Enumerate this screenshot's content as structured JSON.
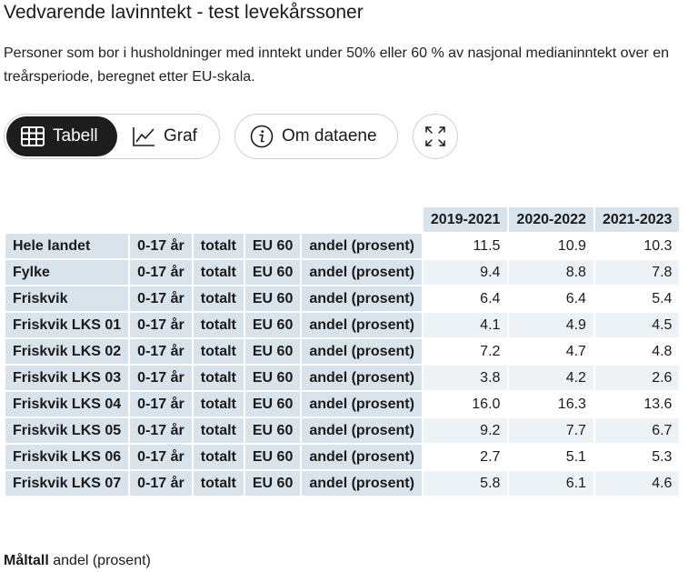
{
  "title": "Vedvarende lavinntekt - test levekårssoner",
  "description": "Personer som bor i husholdninger med inntekt under 50% eller 60 % av nasjonal medianinntekt over en treårsperiode, beregnet etter EU-skala.",
  "toolbar": {
    "table_label": "Tabell",
    "graph_label": "Graf",
    "about_label": "Om dataene"
  },
  "table": {
    "years": [
      "2019-2021",
      "2020-2022",
      "2021-2023"
    ],
    "rows": [
      {
        "area": "Hele landet",
        "age": "0-17 år",
        "group": "totalt",
        "scale": "EU 60",
        "measure": "andel (prosent)",
        "values": [
          "11.5",
          "10.9",
          "10.3"
        ]
      },
      {
        "area": "Fylke",
        "age": "0-17 år",
        "group": "totalt",
        "scale": "EU 60",
        "measure": "andel (prosent)",
        "values": [
          "9.4",
          "8.8",
          "7.8"
        ]
      },
      {
        "area": "Friskvik",
        "age": "0-17 år",
        "group": "totalt",
        "scale": "EU 60",
        "measure": "andel (prosent)",
        "values": [
          "6.4",
          "6.4",
          "5.4"
        ]
      },
      {
        "area": "Friskvik LKS 01",
        "age": "0-17 år",
        "group": "totalt",
        "scale": "EU 60",
        "measure": "andel (prosent)",
        "values": [
          "4.1",
          "4.9",
          "4.5"
        ]
      },
      {
        "area": "Friskvik LKS 02",
        "age": "0-17 år",
        "group": "totalt",
        "scale": "EU 60",
        "measure": "andel (prosent)",
        "values": [
          "7.2",
          "4.7",
          "4.8"
        ]
      },
      {
        "area": "Friskvik LKS 03",
        "age": "0-17 år",
        "group": "totalt",
        "scale": "EU 60",
        "measure": "andel (prosent)",
        "values": [
          "3.8",
          "4.2",
          "2.6"
        ]
      },
      {
        "area": "Friskvik LKS 04",
        "age": "0-17 år",
        "group": "totalt",
        "scale": "EU 60",
        "measure": "andel (prosent)",
        "values": [
          "16.0",
          "16.3",
          "13.6"
        ]
      },
      {
        "area": "Friskvik LKS 05",
        "age": "0-17 år",
        "group": "totalt",
        "scale": "EU 60",
        "measure": "andel (prosent)",
        "values": [
          "9.2",
          "7.7",
          "6.7"
        ]
      },
      {
        "area": "Friskvik LKS 06",
        "age": "0-17 år",
        "group": "totalt",
        "scale": "EU 60",
        "measure": "andel (prosent)",
        "values": [
          "2.7",
          "5.1",
          "5.3"
        ]
      },
      {
        "area": "Friskvik LKS 07",
        "age": "0-17 år",
        "group": "totalt",
        "scale": "EU 60",
        "measure": "andel (prosent)",
        "values": [
          "5.8",
          "6.1",
          "4.6"
        ]
      }
    ]
  },
  "footer": {
    "label": "Måltall",
    "value": "andel (prosent)"
  },
  "icons": {
    "table": "table-icon",
    "graph": "line-chart-icon",
    "about": "info-icon",
    "expand": "expand-icon"
  }
}
